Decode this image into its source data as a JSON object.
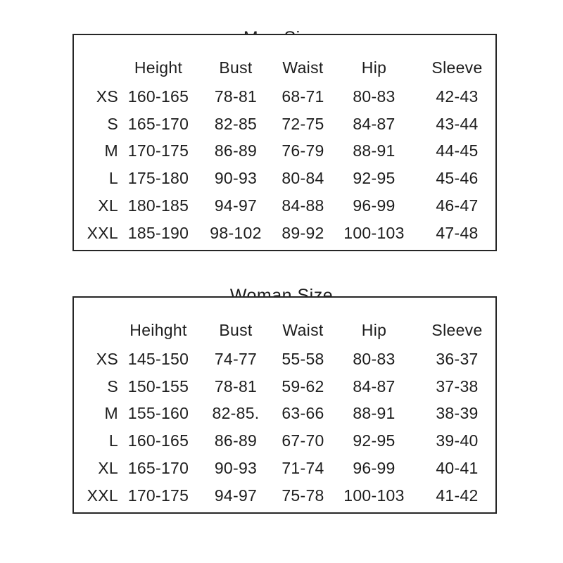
{
  "page": {
    "background": "#ffffff",
    "text_color": "#1d1d1d",
    "border_color": "#262626"
  },
  "chart_data": [
    {
      "type": "table",
      "title": "Man Size",
      "columns": [
        "",
        "Height",
        "Bust",
        "Waist",
        "Hip",
        "Sleeve"
      ],
      "rows": [
        [
          "XS",
          "160-165",
          "78-81",
          "68-71",
          "80-83",
          "42-43"
        ],
        [
          "S",
          "165-170",
          "82-85",
          "72-75",
          "84-87",
          "43-44"
        ],
        [
          "M",
          "170-175",
          "86-89",
          "76-79",
          "88-91",
          "44-45"
        ],
        [
          "L",
          "175-180",
          "90-93",
          "80-84",
          "92-95",
          "45-46"
        ],
        [
          "XL",
          "180-185",
          "94-97",
          "84-88",
          "96-99",
          "46-47"
        ],
        [
          "XXL",
          "185-190",
          "98-102",
          "89-92",
          "100-103",
          "47-48"
        ]
      ]
    },
    {
      "type": "table",
      "title": "Woman Size",
      "columns": [
        "",
        "Heihght",
        "Bust",
        "Waist",
        "Hip",
        "Sleeve"
      ],
      "rows": [
        [
          "XS",
          "145-150",
          "74-77",
          "55-58",
          "80-83",
          "36-37"
        ],
        [
          "S",
          "150-155",
          "78-81",
          "59-62",
          "84-87",
          "37-38"
        ],
        [
          "M",
          "155-160",
          "82-85.",
          "63-66",
          "88-91",
          "38-39"
        ],
        [
          "L",
          "160-165",
          "86-89",
          "67-70",
          "92-95",
          "39-40"
        ],
        [
          "XL",
          "165-170",
          "90-93",
          "71-74",
          "96-99",
          "40-41"
        ],
        [
          "XXL",
          "170-175",
          "94-97",
          "75-78",
          "100-103",
          "41-42"
        ]
      ]
    }
  ]
}
